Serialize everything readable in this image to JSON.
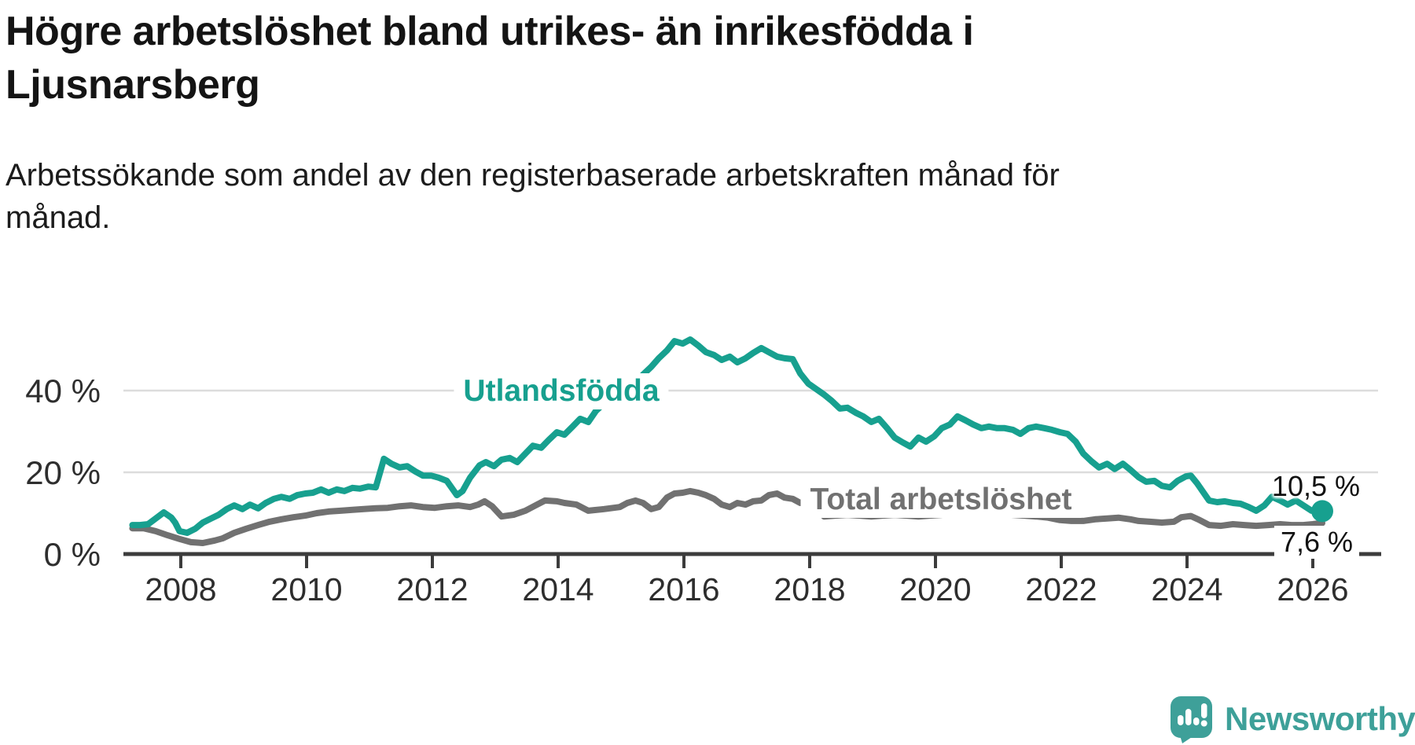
{
  "header": {
    "title": "Högre arbetslöshet bland utrikes- än inrikesfödda i Ljusnarsberg",
    "title_lines": [
      "Högre arbetslöshet bland utrikes- än inrikesfödda i",
      "Ljusnarsberg"
    ],
    "subtitle": "Arbetssökande som andel av den registerbaserade arbetskraften månad för månad.",
    "subtitle_lines": [
      "Arbetssökande som andel av den registerbaserade arbetskraften månad för",
      "månad."
    ]
  },
  "branding": {
    "logo_text": "Newsworthy",
    "logo_icon": "newsworthy-speech-bubble-bar-chart-icon"
  },
  "colors": {
    "accent_teal": "#17A08F",
    "line_gray": "#717171",
    "logo_teal": "#3EA099",
    "grid": "#DCDCDC",
    "axis": "#3C3C3C",
    "tick_text": "#2E2E2E",
    "title_text": "#141414",
    "value_text": "#111111"
  },
  "chart_data": {
    "type": "line",
    "unit": "%",
    "grid": "horizontal",
    "legend_position": "inline-labels",
    "x_axis": {
      "ticks": [
        2008,
        2010,
        2012,
        2014,
        2016,
        2018,
        2020,
        2022,
        2024,
        2026
      ]
    },
    "y_axis": {
      "tick_values": [
        0,
        20,
        40
      ],
      "tick_labels": [
        "0 %",
        "20 %",
        "40 %"
      ],
      "range": [
        0,
        55
      ]
    },
    "series": [
      {
        "name": "Utlandsfödda",
        "color": "#17A08F",
        "end_label": "10,5 %",
        "end_value": 10.5,
        "end_dot": true,
        "points": [
          [
            2007.23,
            7.1
          ],
          [
            2007.35,
            7.1
          ],
          [
            2007.48,
            7.3
          ],
          [
            2007.6,
            8.7
          ],
          [
            2007.73,
            10.2
          ],
          [
            2007.85,
            8.9
          ],
          [
            2007.91,
            7.7
          ],
          [
            2007.98,
            5.6
          ],
          [
            2008.1,
            5.2
          ],
          [
            2008.23,
            6.2
          ],
          [
            2008.35,
            7.7
          ],
          [
            2008.48,
            8.7
          ],
          [
            2008.6,
            9.6
          ],
          [
            2008.73,
            11.0
          ],
          [
            2008.85,
            11.9
          ],
          [
            2008.98,
            11.0
          ],
          [
            2009.1,
            12.1
          ],
          [
            2009.23,
            11.2
          ],
          [
            2009.35,
            12.5
          ],
          [
            2009.48,
            13.5
          ],
          [
            2009.6,
            14.0
          ],
          [
            2009.73,
            13.5
          ],
          [
            2009.85,
            14.4
          ],
          [
            2009.98,
            14.8
          ],
          [
            2010.1,
            15.0
          ],
          [
            2010.23,
            15.8
          ],
          [
            2010.35,
            15.0
          ],
          [
            2010.48,
            15.8
          ],
          [
            2010.6,
            15.4
          ],
          [
            2010.73,
            16.2
          ],
          [
            2010.85,
            16.0
          ],
          [
            2010.98,
            16.5
          ],
          [
            2011.1,
            16.3
          ],
          [
            2011.23,
            23.3
          ],
          [
            2011.35,
            22.1
          ],
          [
            2011.48,
            21.2
          ],
          [
            2011.6,
            21.5
          ],
          [
            2011.73,
            20.2
          ],
          [
            2011.85,
            19.2
          ],
          [
            2011.98,
            19.2
          ],
          [
            2012.1,
            18.7
          ],
          [
            2012.23,
            17.9
          ],
          [
            2012.39,
            14.4
          ],
          [
            2012.48,
            15.4
          ],
          [
            2012.6,
            18.7
          ],
          [
            2012.75,
            21.7
          ],
          [
            2012.85,
            22.5
          ],
          [
            2012.98,
            21.5
          ],
          [
            2013.1,
            23.1
          ],
          [
            2013.23,
            23.5
          ],
          [
            2013.35,
            22.5
          ],
          [
            2013.48,
            24.6
          ],
          [
            2013.6,
            26.5
          ],
          [
            2013.73,
            26.0
          ],
          [
            2013.85,
            27.9
          ],
          [
            2013.98,
            29.8
          ],
          [
            2014.1,
            29.2
          ],
          [
            2014.23,
            31.2
          ],
          [
            2014.35,
            33.1
          ],
          [
            2014.48,
            32.3
          ],
          [
            2014.6,
            35.0
          ],
          [
            2014.73,
            36.9
          ],
          [
            2014.85,
            36.2
          ],
          [
            2014.98,
            38.8
          ],
          [
            2015.1,
            40.8
          ],
          [
            2015.23,
            41.9
          ],
          [
            2015.35,
            43.9
          ],
          [
            2015.48,
            45.8
          ],
          [
            2015.6,
            47.9
          ],
          [
            2015.73,
            49.8
          ],
          [
            2015.85,
            52.1
          ],
          [
            2015.98,
            51.5
          ],
          [
            2016.1,
            52.5
          ],
          [
            2016.23,
            51.0
          ],
          [
            2016.35,
            49.4
          ],
          [
            2016.48,
            48.7
          ],
          [
            2016.6,
            47.5
          ],
          [
            2016.73,
            48.3
          ],
          [
            2016.85,
            46.9
          ],
          [
            2016.98,
            47.9
          ],
          [
            2017.1,
            49.2
          ],
          [
            2017.23,
            50.4
          ],
          [
            2017.35,
            49.4
          ],
          [
            2017.48,
            48.3
          ],
          [
            2017.6,
            47.9
          ],
          [
            2017.73,
            47.7
          ],
          [
            2017.85,
            44.2
          ],
          [
            2017.98,
            41.7
          ],
          [
            2018.1,
            40.4
          ],
          [
            2018.23,
            39.0
          ],
          [
            2018.35,
            37.5
          ],
          [
            2018.48,
            35.6
          ],
          [
            2018.6,
            35.8
          ],
          [
            2018.73,
            34.6
          ],
          [
            2018.85,
            33.7
          ],
          [
            2018.98,
            32.3
          ],
          [
            2019.1,
            33.1
          ],
          [
            2019.23,
            30.8
          ],
          [
            2019.35,
            28.5
          ],
          [
            2019.48,
            27.3
          ],
          [
            2019.6,
            26.3
          ],
          [
            2019.73,
            28.5
          ],
          [
            2019.85,
            27.5
          ],
          [
            2019.98,
            28.8
          ],
          [
            2020.1,
            30.8
          ],
          [
            2020.23,
            31.7
          ],
          [
            2020.35,
            33.7
          ],
          [
            2020.48,
            32.7
          ],
          [
            2020.6,
            31.7
          ],
          [
            2020.73,
            30.8
          ],
          [
            2020.85,
            31.2
          ],
          [
            2020.98,
            30.8
          ],
          [
            2021.1,
            30.8
          ],
          [
            2021.23,
            30.4
          ],
          [
            2021.35,
            29.4
          ],
          [
            2021.48,
            30.8
          ],
          [
            2021.6,
            31.2
          ],
          [
            2021.73,
            30.8
          ],
          [
            2021.85,
            30.4
          ],
          [
            2021.98,
            29.8
          ],
          [
            2022.1,
            29.4
          ],
          [
            2022.23,
            27.5
          ],
          [
            2022.35,
            24.6
          ],
          [
            2022.48,
            22.7
          ],
          [
            2022.6,
            21.2
          ],
          [
            2022.73,
            22.1
          ],
          [
            2022.85,
            20.8
          ],
          [
            2022.98,
            22.1
          ],
          [
            2023.1,
            20.6
          ],
          [
            2023.23,
            18.8
          ],
          [
            2023.35,
            17.7
          ],
          [
            2023.48,
            17.9
          ],
          [
            2023.6,
            16.7
          ],
          [
            2023.73,
            16.3
          ],
          [
            2023.85,
            17.9
          ],
          [
            2023.98,
            19.0
          ],
          [
            2024.06,
            19.2
          ],
          [
            2024.16,
            17.3
          ],
          [
            2024.35,
            13.1
          ],
          [
            2024.48,
            12.7
          ],
          [
            2024.6,
            12.9
          ],
          [
            2024.73,
            12.5
          ],
          [
            2024.85,
            12.3
          ],
          [
            2024.98,
            11.5
          ],
          [
            2025.1,
            10.6
          ],
          [
            2025.23,
            11.9
          ],
          [
            2025.35,
            14.0
          ],
          [
            2025.48,
            13.1
          ],
          [
            2025.6,
            12.1
          ],
          [
            2025.73,
            13.1
          ],
          [
            2025.85,
            11.9
          ],
          [
            2025.98,
            10.6
          ],
          [
            2026.1,
            10.2
          ],
          [
            2026.15,
            10.5
          ]
        ]
      },
      {
        "name": "Total arbetslöshet",
        "color": "#717171",
        "end_label": "7,6 %",
        "end_value": 7.6,
        "end_dot": false,
        "points": [
          [
            2007.23,
            6.3
          ],
          [
            2007.41,
            6.3
          ],
          [
            2007.6,
            5.6
          ],
          [
            2007.79,
            4.6
          ],
          [
            2007.98,
            3.7
          ],
          [
            2008.16,
            2.9
          ],
          [
            2008.35,
            2.7
          ],
          [
            2008.54,
            3.3
          ],
          [
            2008.66,
            3.8
          ],
          [
            2008.85,
            5.2
          ],
          [
            2009.04,
            6.2
          ],
          [
            2009.23,
            7.1
          ],
          [
            2009.41,
            7.9
          ],
          [
            2009.6,
            8.5
          ],
          [
            2009.79,
            9.0
          ],
          [
            2009.98,
            9.4
          ],
          [
            2010.16,
            10.0
          ],
          [
            2010.35,
            10.4
          ],
          [
            2010.54,
            10.6
          ],
          [
            2010.73,
            10.8
          ],
          [
            2010.91,
            11.0
          ],
          [
            2011.1,
            11.2
          ],
          [
            2011.29,
            11.3
          ],
          [
            2011.48,
            11.7
          ],
          [
            2011.66,
            11.9
          ],
          [
            2011.85,
            11.5
          ],
          [
            2012.04,
            11.3
          ],
          [
            2012.23,
            11.7
          ],
          [
            2012.41,
            11.9
          ],
          [
            2012.6,
            11.5
          ],
          [
            2012.73,
            12.1
          ],
          [
            2012.83,
            12.9
          ],
          [
            2012.95,
            11.7
          ],
          [
            2013.1,
            9.2
          ],
          [
            2013.29,
            9.6
          ],
          [
            2013.48,
            10.6
          ],
          [
            2013.64,
            11.9
          ],
          [
            2013.79,
            13.1
          ],
          [
            2013.98,
            12.9
          ],
          [
            2014.1,
            12.5
          ],
          [
            2014.29,
            12.1
          ],
          [
            2014.48,
            10.6
          ],
          [
            2014.73,
            11.0
          ],
          [
            2014.98,
            11.5
          ],
          [
            2015.1,
            12.5
          ],
          [
            2015.23,
            13.1
          ],
          [
            2015.35,
            12.5
          ],
          [
            2015.48,
            11.0
          ],
          [
            2015.6,
            11.5
          ],
          [
            2015.73,
            13.8
          ],
          [
            2015.85,
            14.8
          ],
          [
            2015.98,
            15.0
          ],
          [
            2016.1,
            15.4
          ],
          [
            2016.23,
            15.0
          ],
          [
            2016.35,
            14.4
          ],
          [
            2016.48,
            13.5
          ],
          [
            2016.6,
            12.1
          ],
          [
            2016.73,
            11.5
          ],
          [
            2016.85,
            12.5
          ],
          [
            2016.98,
            12.1
          ],
          [
            2017.1,
            12.9
          ],
          [
            2017.23,
            13.1
          ],
          [
            2017.35,
            14.4
          ],
          [
            2017.48,
            14.8
          ],
          [
            2017.6,
            13.8
          ],
          [
            2017.73,
            13.5
          ],
          [
            2017.85,
            12.5
          ],
          [
            2017.98,
            12.9
          ],
          [
            2018.1,
            11.5
          ],
          [
            2018.23,
            9.2
          ],
          [
            2018.41,
            9.4
          ],
          [
            2018.6,
            9.6
          ],
          [
            2018.79,
            9.4
          ],
          [
            2018.98,
            9.2
          ],
          [
            2019.16,
            9.4
          ],
          [
            2019.35,
            9.6
          ],
          [
            2019.54,
            9.4
          ],
          [
            2019.73,
            9.2
          ],
          [
            2019.91,
            9.4
          ],
          [
            2020.1,
            9.6
          ],
          [
            2020.29,
            10.2
          ],
          [
            2020.48,
            10.4
          ],
          [
            2020.66,
            10.2
          ],
          [
            2020.85,
            10.0
          ],
          [
            2021.04,
            9.8
          ],
          [
            2021.23,
            9.6
          ],
          [
            2021.41,
            9.4
          ],
          [
            2021.6,
            9.2
          ],
          [
            2021.79,
            8.9
          ],
          [
            2021.98,
            8.3
          ],
          [
            2022.16,
            8.1
          ],
          [
            2022.35,
            8.1
          ],
          [
            2022.54,
            8.5
          ],
          [
            2022.73,
            8.7
          ],
          [
            2022.91,
            8.9
          ],
          [
            2023.1,
            8.5
          ],
          [
            2023.23,
            8.1
          ],
          [
            2023.41,
            7.9
          ],
          [
            2023.6,
            7.7
          ],
          [
            2023.79,
            7.9
          ],
          [
            2023.91,
            9.0
          ],
          [
            2024.06,
            9.3
          ],
          [
            2024.2,
            8.3
          ],
          [
            2024.35,
            7.1
          ],
          [
            2024.54,
            6.9
          ],
          [
            2024.73,
            7.3
          ],
          [
            2024.91,
            7.1
          ],
          [
            2025.1,
            6.9
          ],
          [
            2025.29,
            7.1
          ],
          [
            2025.48,
            7.3
          ],
          [
            2025.66,
            7.1
          ],
          [
            2025.85,
            7.1
          ],
          [
            2026.0,
            7.3
          ],
          [
            2026.15,
            7.6
          ]
        ]
      }
    ]
  }
}
